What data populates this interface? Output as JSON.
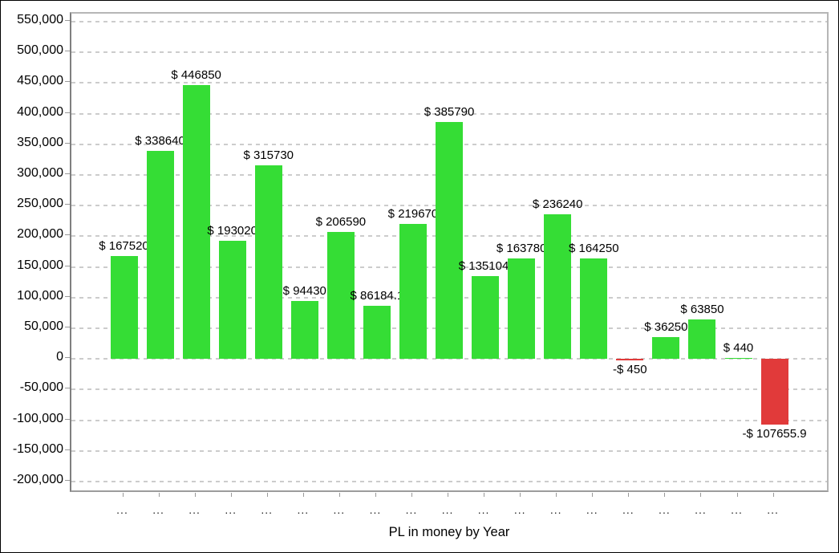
{
  "chart_data": {
    "type": "bar",
    "title": "",
    "xlabel": "PL in money by Year",
    "ylabel": "",
    "categories": [
      "...",
      "...",
      "...",
      "...",
      "...",
      "...",
      "...",
      "...",
      "...",
      "...",
      "...",
      "...",
      "...",
      "...",
      "...",
      "...",
      "...",
      "...",
      "..."
    ],
    "values": [
      167520,
      338640,
      446850,
      193020,
      315730,
      94430,
      206590,
      86184.1,
      219670,
      385790,
      135104,
      163780,
      236240,
      164250,
      -450,
      36250,
      63850,
      440,
      -107655.9
    ],
    "bar_labels": [
      "$ 167520",
      "$ 338640",
      "$ 446850",
      "$ 193020",
      "$ 315730",
      "$ 94430",
      "$ 206590",
      "$ 86184.1",
      "$ 219670",
      "$ 385790",
      "$ 135104.",
      "$ 163780",
      "$ 236240",
      "$ 164250",
      "-$ 450",
      "$ 36250",
      "$ 63850",
      "$ 440",
      "-$ 107655.9"
    ],
    "ylim": [
      -215000,
      563000
    ],
    "yticks": [
      550000,
      500000,
      450000,
      400000,
      350000,
      300000,
      250000,
      200000,
      150000,
      100000,
      50000,
      0,
      -50000,
      -100000,
      -150000,
      -200000
    ],
    "ytick_labels": [
      "550,000",
      "500,000",
      "450,000",
      "400,000",
      "350,000",
      "300,000",
      "250,000",
      "200,000",
      "150,000",
      "100,000",
      "50,000",
      "0",
      "-50,000",
      "-100,000",
      "-150,000",
      "-200,000"
    ],
    "grid": "horizontal-dashed",
    "legend": "none",
    "colors": {
      "positive_bar": "#35dd35",
      "negative_bar": "#e13a3a",
      "gridline": "#cccccc",
      "axis_text": "#000000",
      "tick_mark": "#999999"
    }
  }
}
